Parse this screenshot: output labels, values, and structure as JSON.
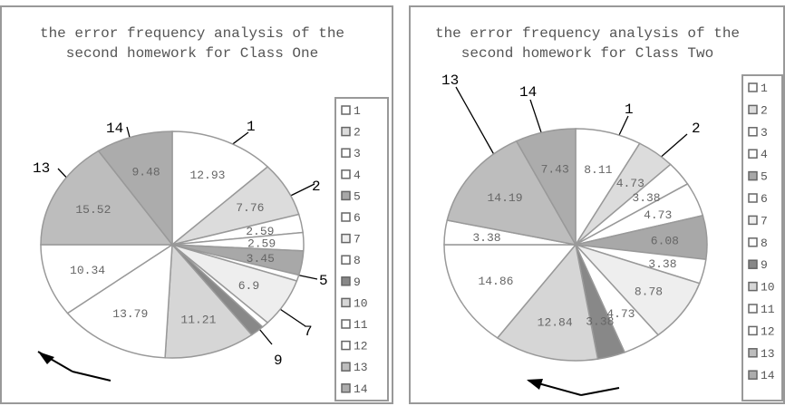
{
  "chart_data": [
    {
      "type": "pie",
      "title": "the error frequency analysis of the second homework for Class One",
      "categories": [
        "1",
        "2",
        "3",
        "4",
        "5",
        "6",
        "7",
        "8",
        "9",
        "10",
        "11",
        "12",
        "13",
        "14"
      ],
      "values": [
        12.93,
        7.76,
        2.59,
        2.59,
        3.45,
        0.86,
        6.9,
        0.86,
        1.72,
        11.21,
        13.79,
        10.34,
        15.52,
        9.48
      ],
      "colors": [
        "#ffffff",
        "#dcdcdc",
        "#ffffff",
        "#ffffff",
        "#a8a8a8",
        "#ffffff",
        "#eeeeee",
        "#ffffff",
        "#888888",
        "#d6d6d6",
        "#ffffff",
        "#ffffff",
        "#bdbdbd",
        "#acacac"
      ]
    },
    {
      "type": "pie",
      "title": "the error frequency analysis of the second homework for Class Two",
      "categories": [
        "1",
        "2",
        "3",
        "4",
        "5",
        "6",
        "7",
        "8",
        "9",
        "10",
        "11",
        "12",
        "13",
        "14"
      ],
      "values": [
        8.11,
        4.73,
        3.38,
        4.73,
        6.08,
        3.38,
        8.78,
        4.73,
        3.38,
        12.84,
        14.86,
        3.38,
        14.19,
        7.43
      ],
      "colors": [
        "#ffffff",
        "#dcdcdc",
        "#ffffff",
        "#ffffff",
        "#a8a8a8",
        "#ffffff",
        "#eeeeee",
        "#ffffff",
        "#888888",
        "#d6d6d6",
        "#ffffff",
        "#ffffff",
        "#bdbdbd",
        "#acacac"
      ]
    }
  ]
}
